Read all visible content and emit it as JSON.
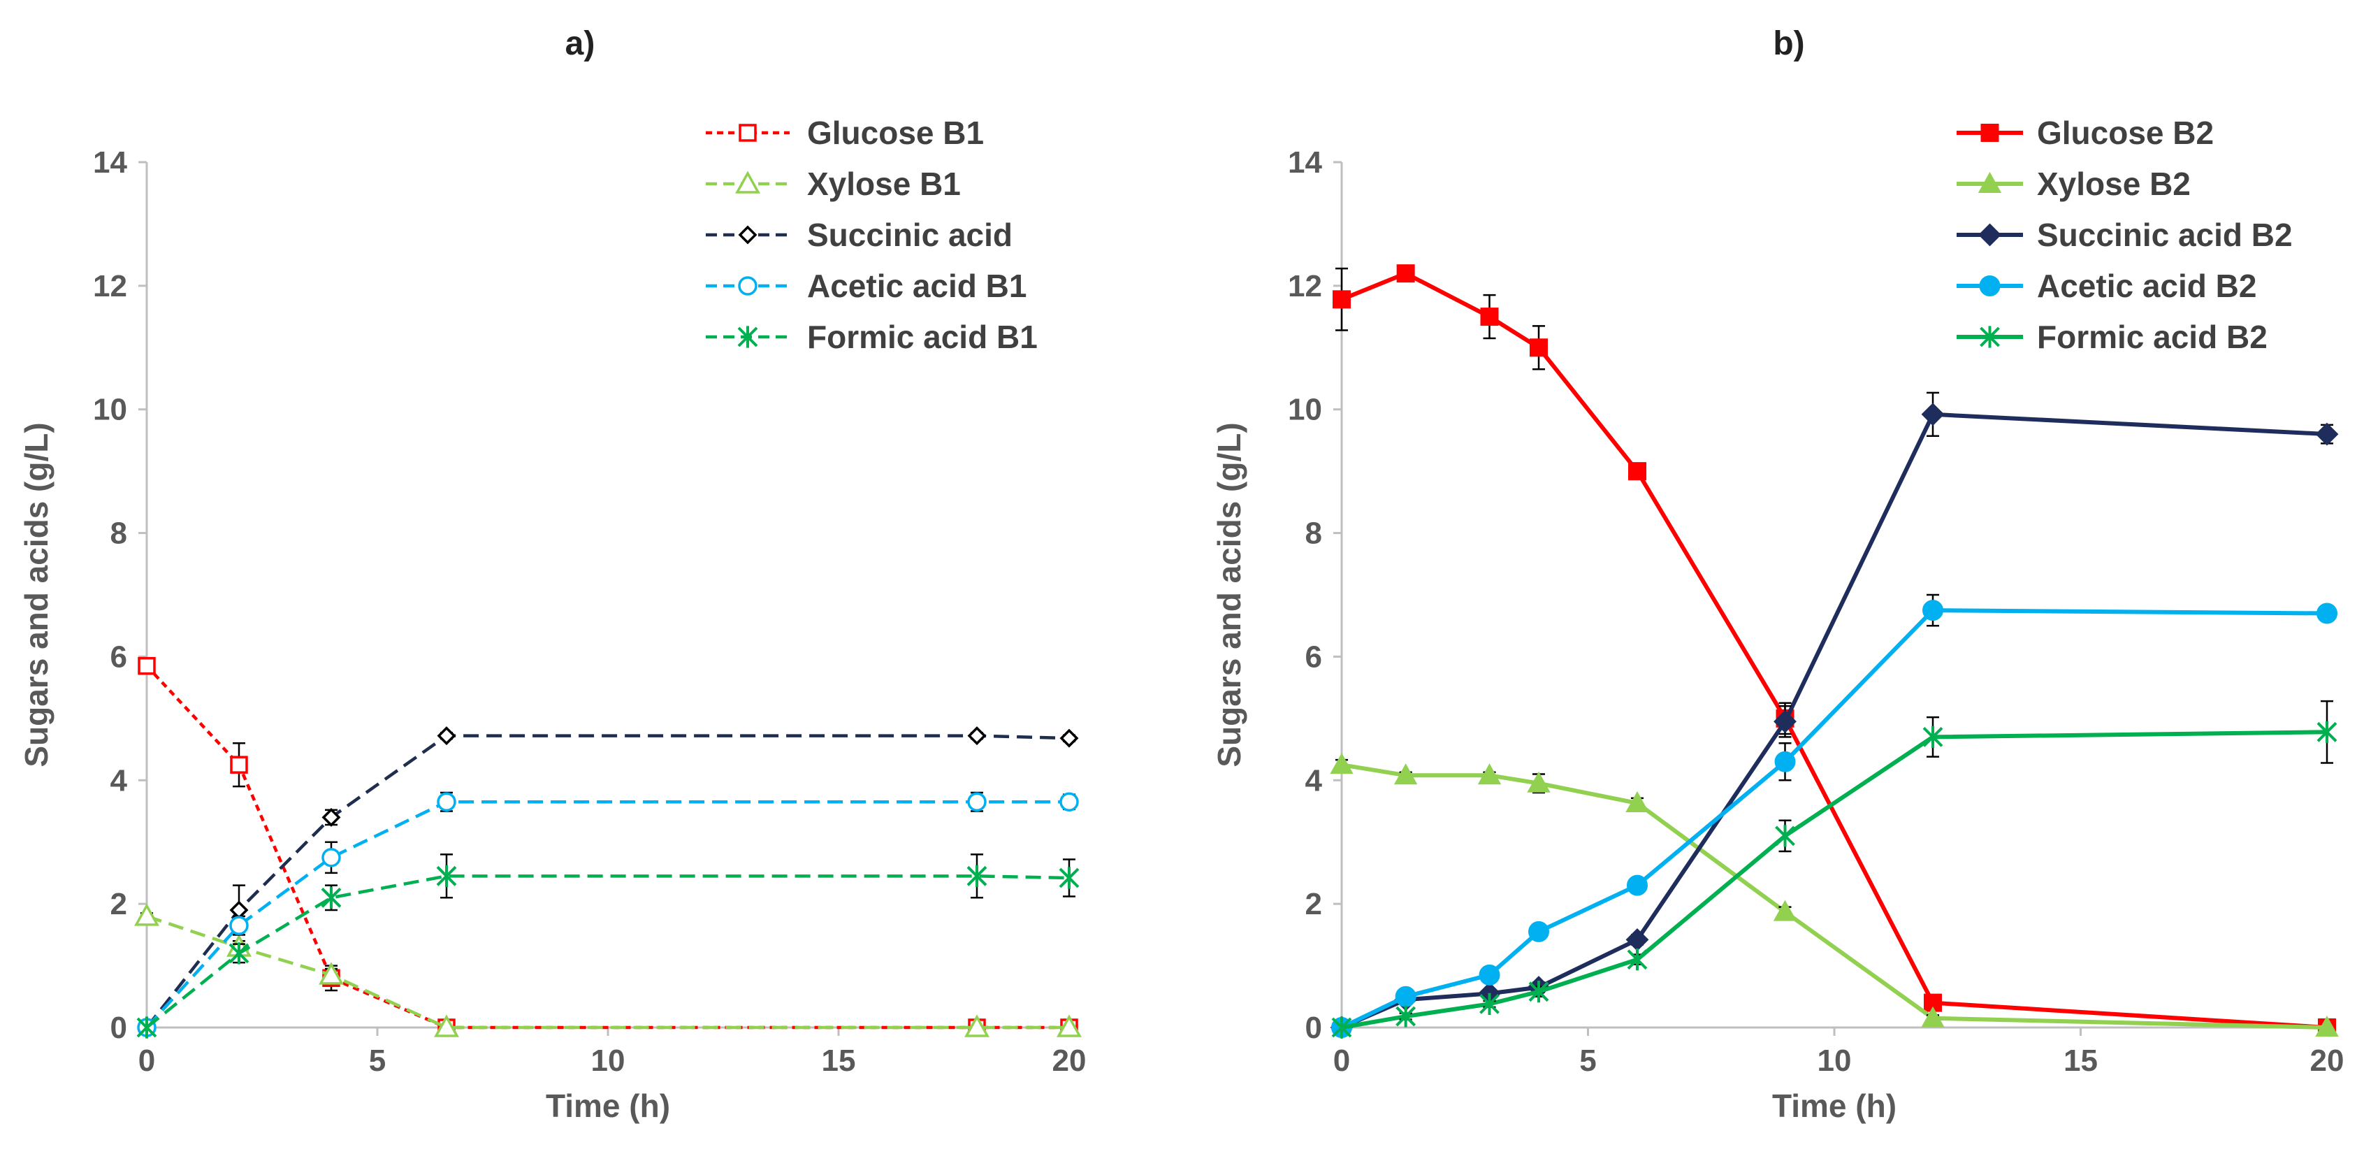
{
  "chart_data": [
    {
      "type": "line",
      "title": "a)",
      "xlabel": "Time (h)",
      "ylabel": "Sugars and acids (g/L)",
      "xlim": [
        0,
        20
      ],
      "ylim": [
        0,
        14
      ],
      "xticks": [
        0,
        5,
        10,
        15,
        20
      ],
      "yticks": [
        0,
        2,
        4,
        6,
        8,
        10,
        12,
        14
      ],
      "legend_position": "top-right",
      "series": [
        {
          "name": "Glucose B1",
          "color": "#ff0000",
          "marker": "square",
          "filled": false,
          "dash": "short",
          "x": [
            0,
            2,
            4,
            6.5,
            18,
            20
          ],
          "y": [
            5.85,
            4.25,
            0.8,
            0,
            0,
            0
          ],
          "err": [
            0.05,
            0.35,
            0.2,
            0,
            0,
            0
          ]
        },
        {
          "name": "Xylose B1",
          "color": "#92d050",
          "marker": "triangle",
          "filled": false,
          "dash": "long",
          "x": [
            0,
            2,
            4,
            6.5,
            18,
            20
          ],
          "y": [
            1.8,
            1.3,
            0.85,
            0,
            0,
            0
          ],
          "err": [
            0.05,
            0.1,
            0.1,
            0,
            0,
            0
          ]
        },
        {
          "name": "Succinic acid",
          "color": "#1f2d4e",
          "marker": "diamond",
          "filled": false,
          "dash": "long",
          "x": [
            0,
            2,
            4,
            6.5,
            18,
            20
          ],
          "y": [
            0,
            1.9,
            3.4,
            4.72,
            4.72,
            4.68
          ],
          "err": [
            0,
            0.4,
            0.12,
            0.05,
            0.05,
            0.05
          ]
        },
        {
          "name": "Acetic acid B1",
          "color": "#00b0f0",
          "marker": "circle",
          "filled": false,
          "dash": "long",
          "x": [
            0,
            2,
            4,
            6.5,
            18,
            20
          ],
          "y": [
            0,
            1.65,
            2.75,
            3.65,
            3.65,
            3.65
          ],
          "err": [
            0,
            0.15,
            0.25,
            0.15,
            0.15,
            0.12
          ]
        },
        {
          "name": "Formic acid B1",
          "color": "#00b050",
          "marker": "star",
          "filled": false,
          "dash": "long",
          "x": [
            0,
            2,
            4,
            6.5,
            18,
            20
          ],
          "y": [
            0,
            1.2,
            2.1,
            2.45,
            2.45,
            2.42
          ],
          "err": [
            0,
            0.15,
            0.2,
            0.35,
            0.35,
            0.3
          ]
        }
      ]
    },
    {
      "type": "line",
      "title": "b)",
      "xlabel": "Time (h)",
      "ylabel": "Sugars and acids (g/L)",
      "xlim": [
        0,
        20
      ],
      "ylim": [
        0,
        14
      ],
      "xticks": [
        0,
        5,
        10,
        15,
        20
      ],
      "yticks": [
        0,
        2,
        4,
        6,
        8,
        10,
        12,
        14
      ],
      "legend_position": "top-right",
      "series": [
        {
          "name": "Glucose B2",
          "color": "#ff0000",
          "marker": "square",
          "filled": true,
          "dash": "solid",
          "x": [
            0,
            1.3,
            3,
            4,
            6,
            9,
            12,
            20
          ],
          "y": [
            11.78,
            12.2,
            11.5,
            11.0,
            9.0,
            5.0,
            0.4,
            0
          ],
          "err": [
            0.5,
            0.1,
            0.35,
            0.35,
            0.1,
            0.25,
            0.08,
            0
          ]
        },
        {
          "name": "Xylose B2",
          "color": "#92d050",
          "marker": "triangle",
          "filled": true,
          "dash": "solid",
          "x": [
            0,
            1.3,
            3,
            4,
            6,
            9,
            12,
            20
          ],
          "y": [
            4.25,
            4.08,
            4.08,
            3.95,
            3.63,
            1.87,
            0.15,
            0
          ],
          "err": [
            0.08,
            0.05,
            0.05,
            0.15,
            0.08,
            0.08,
            0.05,
            0
          ]
        },
        {
          "name": "Succinic acid B2",
          "color": "#1f2d5c",
          "marker": "diamond",
          "filled": true,
          "dash": "solid",
          "x": [
            0,
            1.3,
            3,
            4,
            6,
            9,
            12,
            20
          ],
          "y": [
            0,
            0.45,
            0.55,
            0.65,
            1.42,
            4.95,
            9.92,
            9.6
          ],
          "err": [
            0,
            0.05,
            0.05,
            0.08,
            0.08,
            0.25,
            0.35,
            0.15
          ]
        },
        {
          "name": "Acetic acid B2",
          "color": "#00b0f0",
          "marker": "circle",
          "filled": true,
          "dash": "solid",
          "x": [
            0,
            1.3,
            3,
            4,
            6,
            9,
            12,
            20
          ],
          "y": [
            0,
            0.5,
            0.85,
            1.55,
            2.3,
            4.3,
            6.75,
            6.7
          ],
          "err": [
            0,
            0.05,
            0.05,
            0.08,
            0.12,
            0.3,
            0.25,
            0.12
          ]
        },
        {
          "name": "Formic acid B2",
          "color": "#00b050",
          "marker": "star",
          "filled": true,
          "dash": "solid",
          "x": [
            0,
            1.3,
            3,
            4,
            6,
            9,
            12,
            20
          ],
          "y": [
            0,
            0.18,
            0.38,
            0.58,
            1.1,
            3.1,
            4.7,
            4.78
          ],
          "err": [
            0,
            0.05,
            0.05,
            0.08,
            0.08,
            0.25,
            0.32,
            0.5
          ]
        }
      ]
    }
  ]
}
